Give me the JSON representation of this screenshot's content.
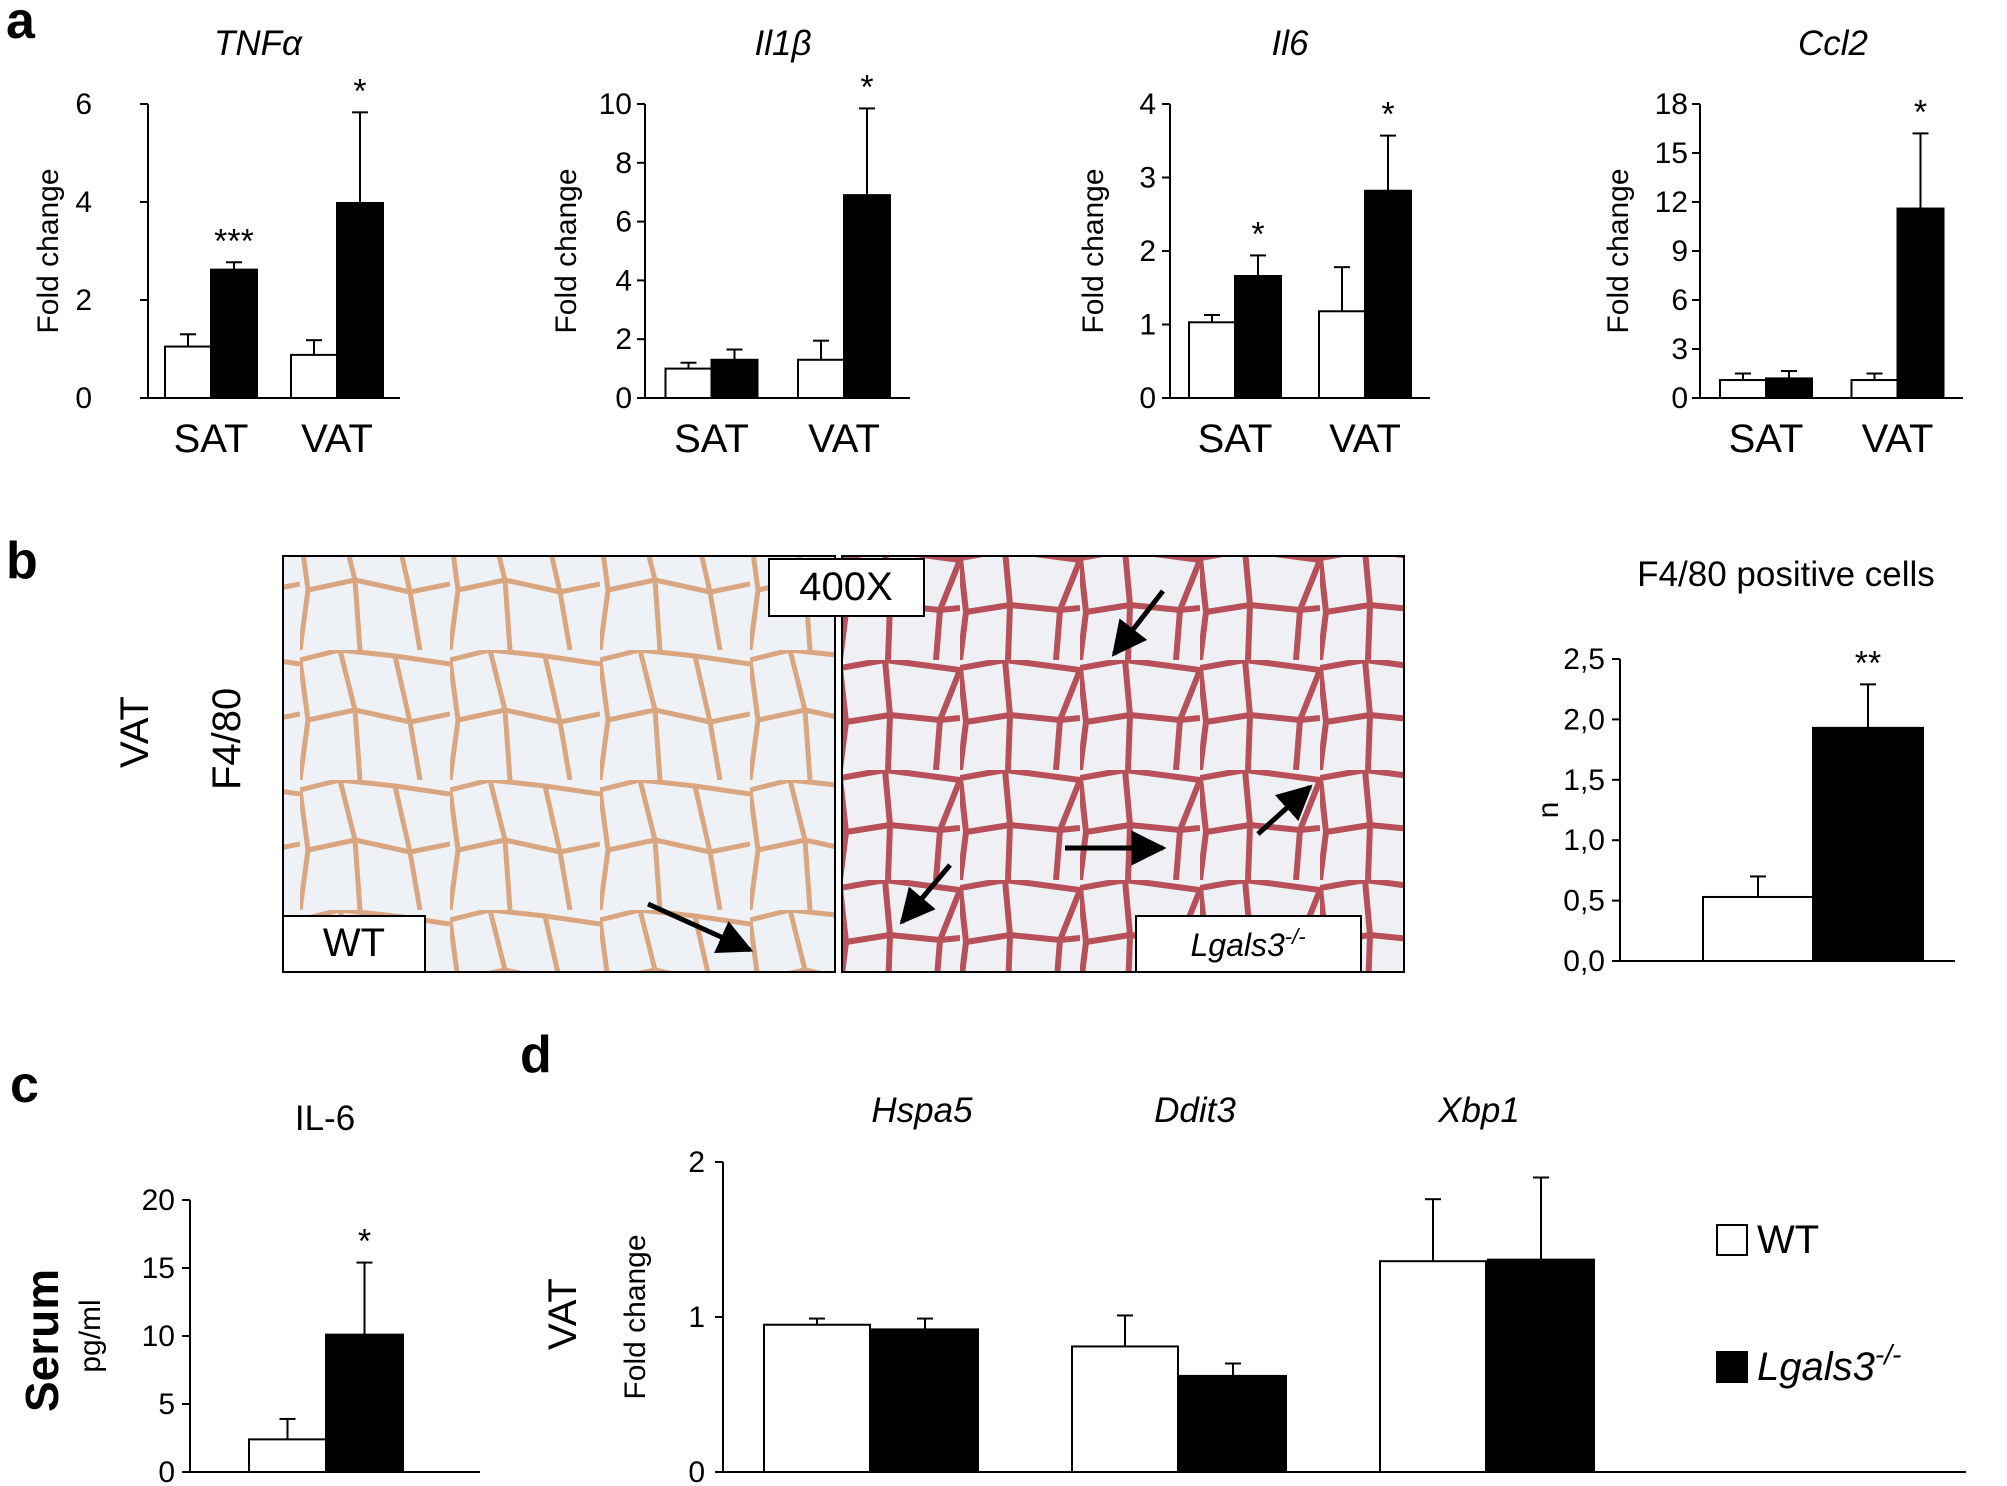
{
  "panels": {
    "a": "a",
    "b": "b",
    "c": "c",
    "d": "d"
  },
  "colors": {
    "wt": "#ffffff",
    "ko": "#000000",
    "stroke": "#000000"
  },
  "micro": {
    "side_label": "VAT",
    "stain_label": "F4/80",
    "magnification": "400X",
    "left_label": "WT",
    "right_label_base": "Lgals3",
    "right_label_sup": "-/-"
  },
  "legend": {
    "wt_label": "WT",
    "ko_label_base": "Lgals3",
    "ko_label_sup": "-/-"
  },
  "panel_c": {
    "side_label": "Serum"
  },
  "panel_d": {
    "side_label": "VAT"
  },
  "chart_data": [
    {
      "id": "a1",
      "type": "bar",
      "title": "TNFα",
      "title_italic": true,
      "categories": [
        "SAT",
        "VAT"
      ],
      "ylabel": "Fold change",
      "ylim": [
        0,
        6
      ],
      "yticks": [
        0,
        2,
        4,
        6
      ],
      "tick_labels": [
        "0",
        "2",
        "4",
        "6"
      ],
      "series": [
        {
          "name": "WT",
          "values": [
            1.05,
            0.88
          ],
          "errors": [
            0.25,
            0.3
          ]
        },
        {
          "name": "Lgals3-/-",
          "values": [
            2.62,
            3.98
          ],
          "errors": [
            0.15,
            1.85
          ]
        }
      ],
      "significance": [
        "***",
        "*"
      ]
    },
    {
      "id": "a2",
      "type": "bar",
      "title": "Il1β",
      "title_italic": true,
      "categories": [
        "SAT",
        "VAT"
      ],
      "ylabel": "Fold change",
      "ylim": [
        0,
        10
      ],
      "yticks": [
        0,
        2,
        4,
        6,
        8,
        10
      ],
      "tick_labels": [
        "0",
        "2",
        "4",
        "6",
        "8",
        "10"
      ],
      "series": [
        {
          "name": "WT",
          "values": [
            1.0,
            1.3
          ],
          "errors": [
            0.2,
            0.65
          ]
        },
        {
          "name": "Lgals3-/-",
          "values": [
            1.3,
            6.9
          ],
          "errors": [
            0.35,
            2.95
          ]
        }
      ],
      "significance": [
        "",
        "*"
      ]
    },
    {
      "id": "a3",
      "type": "bar",
      "title": "Il6",
      "title_italic": true,
      "categories": [
        "SAT",
        "VAT"
      ],
      "ylabel": "Fold change",
      "ylim": [
        0,
        4
      ],
      "yticks": [
        0,
        1,
        2,
        3,
        4
      ],
      "tick_labels": [
        "0",
        "1",
        "2",
        "3",
        "4"
      ],
      "series": [
        {
          "name": "WT",
          "values": [
            1.03,
            1.18
          ],
          "errors": [
            0.1,
            0.6
          ]
        },
        {
          "name": "Lgals3-/-",
          "values": [
            1.66,
            2.82
          ],
          "errors": [
            0.28,
            0.75
          ]
        }
      ],
      "significance": [
        "*",
        "*"
      ]
    },
    {
      "id": "a4",
      "type": "bar",
      "title": "Ccl2",
      "title_italic": true,
      "categories": [
        "SAT",
        "VAT"
      ],
      "ylabel": "Fold change",
      "ylim": [
        0,
        18
      ],
      "yticks": [
        0,
        3,
        6,
        9,
        12,
        15,
        18
      ],
      "tick_labels": [
        "0",
        "3",
        "6",
        "9",
        "12",
        "15",
        "18"
      ],
      "series": [
        {
          "name": "WT",
          "values": [
            1.1,
            1.1
          ],
          "errors": [
            0.4,
            0.4
          ]
        },
        {
          "name": "Lgals3-/-",
          "values": [
            1.2,
            11.6
          ],
          "errors": [
            0.45,
            4.6
          ]
        }
      ],
      "significance": [
        "",
        "*"
      ]
    },
    {
      "id": "b",
      "type": "bar",
      "title": "F4/80 positive cells",
      "title_italic": false,
      "categories": [
        ""
      ],
      "ylabel": "n",
      "ylim": [
        0,
        2.5
      ],
      "yticks": [
        0,
        0.5,
        1.0,
        1.5,
        2.0,
        2.5
      ],
      "tick_labels": [
        "0,0",
        "0,5",
        "1,0",
        "1,5",
        "2,0",
        "2,5"
      ],
      "series": [
        {
          "name": "WT",
          "values": [
            0.53
          ],
          "errors": [
            0.17
          ]
        },
        {
          "name": "Lgals3-/-",
          "values": [
            1.93
          ],
          "errors": [
            0.36
          ]
        }
      ],
      "significance": [
        "**"
      ]
    },
    {
      "id": "c",
      "type": "bar",
      "title": "IL-6",
      "title_italic": false,
      "categories": [
        ""
      ],
      "ylabel": "pg/ml",
      "ylim": [
        0,
        20
      ],
      "yticks": [
        0,
        5,
        10,
        15,
        20
      ],
      "tick_labels": [
        "0",
        "5",
        "10",
        "15",
        "20"
      ],
      "series": [
        {
          "name": "WT",
          "values": [
            2.4
          ],
          "errors": [
            1.5
          ]
        },
        {
          "name": "Lgals3-/-",
          "values": [
            10.1
          ],
          "errors": [
            5.3
          ]
        }
      ],
      "significance": [
        "*"
      ]
    },
    {
      "id": "d",
      "type": "bar",
      "title": "",
      "title_italic": true,
      "categories": [
        "Hspa5",
        "Ddit3",
        "Xbp1"
      ],
      "ylabel": "Fold change",
      "ylim": [
        0,
        2
      ],
      "yticks": [
        0,
        1,
        2
      ],
      "tick_labels": [
        "0",
        "1",
        "2"
      ],
      "series": [
        {
          "name": "WT",
          "values": [
            0.95,
            0.81,
            1.36
          ],
          "errors": [
            0.04,
            0.2,
            0.4
          ]
        },
        {
          "name": "Lgals3-/-",
          "values": [
            0.92,
            0.62,
            1.37
          ],
          "errors": [
            0.07,
            0.08,
            0.53
          ]
        }
      ],
      "significance": [
        "",
        "",
        ""
      ]
    }
  ]
}
